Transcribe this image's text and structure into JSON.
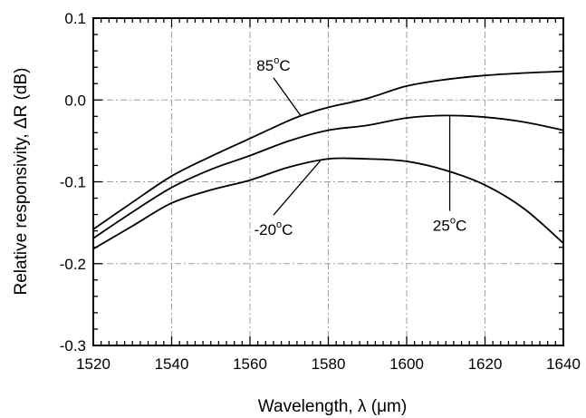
{
  "chart_data": {
    "type": "line",
    "xlabel": "Wavelength, λ (μm)",
    "ylabel": "Relative responsivity, ΔR (dB)",
    "xlim": [
      1520,
      1640
    ],
    "ylim": [
      -0.3,
      0.1
    ],
    "xticks": [
      1520,
      1540,
      1560,
      1580,
      1600,
      1620,
      1640
    ],
    "yticks": [
      -0.3,
      -0.2,
      -0.1,
      0.0,
      0.1
    ],
    "ytick_labels": [
      "-0.3",
      "-0.2",
      "-0.1",
      "0.0",
      "0.1"
    ],
    "grid": true,
    "series": [
      {
        "name": "85°C",
        "label_main": "85",
        "label_sup": "o",
        "label_tail": "C",
        "x": [
          1520,
          1530,
          1540,
          1550,
          1560,
          1570,
          1575,
          1580,
          1590,
          1600,
          1610,
          1620,
          1630,
          1640
        ],
        "y": [
          -0.158,
          -0.125,
          -0.093,
          -0.069,
          -0.047,
          -0.025,
          -0.016,
          -0.009,
          0.002,
          0.017,
          0.025,
          0.03,
          0.033,
          0.035
        ]
      },
      {
        "name": "25°C",
        "label_main": "25",
        "label_sup": "o",
        "label_tail": "C",
        "x": [
          1520,
          1530,
          1540,
          1550,
          1560,
          1570,
          1580,
          1590,
          1600,
          1610,
          1620,
          1630,
          1640
        ],
        "y": [
          -0.169,
          -0.137,
          -0.107,
          -0.085,
          -0.068,
          -0.05,
          -0.037,
          -0.031,
          -0.022,
          -0.019,
          -0.021,
          -0.027,
          -0.037
        ]
      },
      {
        "name": "-20°C",
        "label_main": "-20",
        "label_sup": "o",
        "label_tail": "C",
        "x": [
          1520,
          1530,
          1540,
          1550,
          1560,
          1570,
          1580,
          1590,
          1600,
          1610,
          1620,
          1630,
          1640
        ],
        "y": [
          -0.182,
          -0.154,
          -0.126,
          -0.11,
          -0.098,
          -0.082,
          -0.072,
          -0.072,
          -0.075,
          -0.086,
          -0.104,
          -0.133,
          -0.175
        ]
      }
    ],
    "annotations": [
      {
        "series": "85°C",
        "at_x": 1573,
        "text_x": 1566,
        "text_y": 0.036
      },
      {
        "series": "25°C",
        "at_x": 1611,
        "text_x": 1611,
        "text_y": -0.16
      },
      {
        "series": "-20°C",
        "at_x": 1578,
        "text_x": 1566,
        "text_y": -0.165
      }
    ],
    "colors": {
      "line": "#000000",
      "grid": "#a0a0a0",
      "axis": "#000000"
    }
  }
}
